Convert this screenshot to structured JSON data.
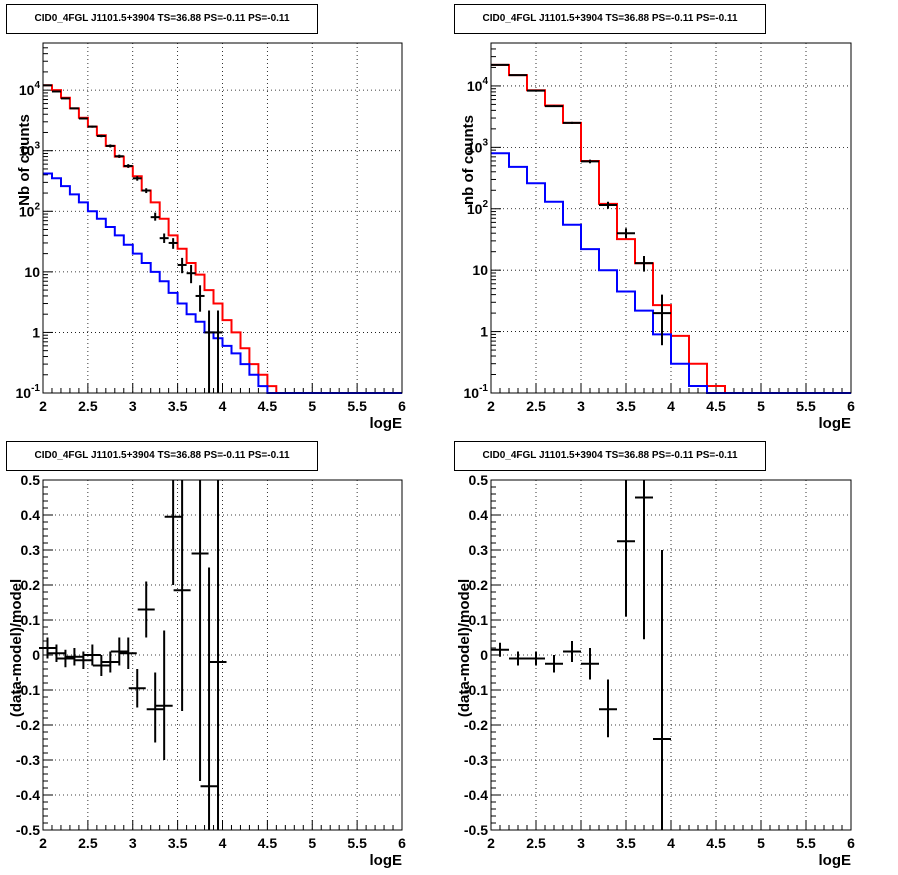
{
  "colors": {
    "data": "#000000",
    "total_model": "#ff0000",
    "source_model": "#0000ff",
    "grid": "#000000"
  },
  "chart_data": [
    {
      "type": "line",
      "title": "CID0_4FGL J1101.5+3904 TS=36.88 PS=-0.11 PS=-0.11",
      "xlabel": "logE",
      "ylabel": "Nb of counts",
      "yscale": "log",
      "xlim": [
        2,
        6
      ],
      "ylim": [
        0.1,
        60000
      ],
      "grid": true,
      "x_ticks": [
        "2",
        "2.5",
        "3",
        "3.5",
        "4",
        "4.5",
        "5",
        "5.5",
        "6"
      ],
      "y_ticks": [
        {
          "v": 0.1,
          "label": "10^-1"
        },
        {
          "v": 1,
          "label": "1"
        },
        {
          "v": 10,
          "label": "10"
        },
        {
          "v": 100,
          "label": "10^2"
        },
        {
          "v": 1000,
          "label": "10^3"
        },
        {
          "v": 10000,
          "label": "10^4"
        }
      ],
      "bin_edges": [
        2.0,
        2.1,
        2.2,
        2.3,
        2.4,
        2.5,
        2.6,
        2.7,
        2.8,
        2.9,
        3.0,
        3.1,
        3.2,
        3.3,
        3.4,
        3.5,
        3.6,
        3.7,
        3.8,
        3.9,
        4.0,
        4.1,
        4.2,
        4.3,
        4.4,
        4.5,
        4.6,
        4.7,
        4.8,
        4.9,
        5.0,
        5.1,
        5.2,
        5.3,
        5.4,
        5.5,
        5.6,
        5.7,
        5.8,
        5.9,
        6.0
      ],
      "series": [
        {
          "role": "total_model",
          "values": [
            12000,
            10000,
            7500,
            5000,
            3500,
            2500,
            1800,
            1200,
            800,
            550,
            380,
            220,
            140,
            75,
            40,
            24,
            14,
            9,
            5,
            3,
            1.6,
            1.0,
            0.55,
            0.3,
            0.2,
            0.13,
            0.1,
            0.1,
            0.1,
            0.1,
            0.1,
            0.1,
            0.1,
            0.1,
            0.1,
            0.1,
            0.1,
            0.1,
            0.1,
            0.1
          ]
        },
        {
          "role": "source_model",
          "values": [
            420,
            350,
            260,
            190,
            140,
            100,
            75,
            55,
            40,
            28,
            20,
            14,
            10,
            7,
            4.5,
            3,
            2,
            1.5,
            1.0,
            0.8,
            0.6,
            0.45,
            0.3,
            0.2,
            0.13,
            0.1,
            0.1,
            0.1,
            0.1,
            0.1,
            0.1,
            0.1,
            0.1,
            0.1,
            0.1,
            0.1,
            0.1,
            0.1,
            0.1,
            0.1
          ]
        }
      ],
      "points": [
        {
          "x": 2.05,
          "y": 12000,
          "lo": 11800,
          "hi": 12200
        },
        {
          "x": 2.15,
          "y": 9500,
          "lo": 9300,
          "hi": 9700
        },
        {
          "x": 2.25,
          "y": 7300,
          "lo": 7100,
          "hi": 7500
        },
        {
          "x": 2.35,
          "y": 5000,
          "lo": 4850,
          "hi": 5150
        },
        {
          "x": 2.45,
          "y": 3400,
          "lo": 3280,
          "hi": 3520
        },
        {
          "x": 2.55,
          "y": 2500,
          "lo": 2400,
          "hi": 2600
        },
        {
          "x": 2.65,
          "y": 1750,
          "lo": 1670,
          "hi": 1830
        },
        {
          "x": 2.75,
          "y": 1200,
          "lo": 1130,
          "hi": 1270
        },
        {
          "x": 2.85,
          "y": 810,
          "lo": 760,
          "hi": 860
        },
        {
          "x": 2.95,
          "y": 560,
          "lo": 520,
          "hi": 600
        },
        {
          "x": 3.05,
          "y": 350,
          "lo": 320,
          "hi": 380
        },
        {
          "x": 3.15,
          "y": 220,
          "lo": 200,
          "hi": 240
        },
        {
          "x": 3.25,
          "y": 80,
          "lo": 70,
          "hi": 95
        },
        {
          "x": 3.35,
          "y": 36,
          "lo": 30,
          "hi": 43
        },
        {
          "x": 3.45,
          "y": 30,
          "lo": 24,
          "hi": 36
        },
        {
          "x": 3.55,
          "y": 13,
          "lo": 9.5,
          "hi": 17
        },
        {
          "x": 3.65,
          "y": 9.5,
          "lo": 6.5,
          "hi": 13
        },
        {
          "x": 3.75,
          "y": 4,
          "lo": 2.2,
          "hi": 6
        },
        {
          "x": 3.85,
          "y": 1.0,
          "lo": 0.1,
          "hi": 2.3
        },
        {
          "x": 3.95,
          "y": 1.0,
          "lo": 0.1,
          "hi": 2.3
        }
      ]
    },
    {
      "type": "line",
      "title": "CID0_4FGL J1101.5+3904 TS=36.88 PS=-0.11 PS=-0.11",
      "xlabel": "logE",
      "ylabel": "nb of counts",
      "yscale": "log",
      "xlim": [
        2,
        6
      ],
      "ylim": [
        0.1,
        50000
      ],
      "grid": true,
      "x_ticks": [
        "2",
        "2.5",
        "3",
        "3.5",
        "4",
        "4.5",
        "5",
        "5.5",
        "6"
      ],
      "y_ticks": [
        {
          "v": 0.1,
          "label": "10^-1"
        },
        {
          "v": 1,
          "label": "1"
        },
        {
          "v": 10,
          "label": "10"
        },
        {
          "v": 100,
          "label": "10^2"
        },
        {
          "v": 1000,
          "label": "10^3"
        },
        {
          "v": 10000,
          "label": "10^4"
        }
      ],
      "bin_edges": [
        2.0,
        2.2,
        2.4,
        2.6,
        2.8,
        3.0,
        3.2,
        3.4,
        3.6,
        3.8,
        4.0,
        4.2,
        4.4,
        4.6,
        4.8,
        5.0,
        5.2,
        5.4,
        5.6,
        5.8,
        6.0
      ],
      "series": [
        {
          "role": "total_model",
          "values": [
            22000,
            15000,
            8500,
            4800,
            2500,
            600,
            120,
            32,
            13,
            2.7,
            0.85,
            0.3,
            0.13,
            0.1,
            0.1,
            0.1,
            0.1,
            0.1,
            0.1,
            0.1
          ]
        },
        {
          "role": "source_model",
          "values": [
            800,
            480,
            260,
            130,
            55,
            22,
            10,
            4.5,
            2.2,
            0.9,
            0.3,
            0.13,
            0.1,
            0.1,
            0.1,
            0.1,
            0.1,
            0.1,
            0.1,
            0.1
          ]
        }
      ],
      "points": [
        {
          "x": 2.1,
          "y": 22000,
          "lo": 21700,
          "hi": 22300
        },
        {
          "x": 2.3,
          "y": 15000,
          "lo": 14750,
          "hi": 15250
        },
        {
          "x": 2.5,
          "y": 8400,
          "lo": 8200,
          "hi": 8600
        },
        {
          "x": 2.7,
          "y": 4700,
          "lo": 4550,
          "hi": 4850
        },
        {
          "x": 2.9,
          "y": 2500,
          "lo": 2400,
          "hi": 2600
        },
        {
          "x": 3.1,
          "y": 590,
          "lo": 550,
          "hi": 630
        },
        {
          "x": 3.3,
          "y": 115,
          "lo": 100,
          "hi": 130
        },
        {
          "x": 3.5,
          "y": 40,
          "lo": 33,
          "hi": 48
        },
        {
          "x": 3.7,
          "y": 13,
          "lo": 9.5,
          "hi": 17
        },
        {
          "x": 3.9,
          "y": 2.0,
          "lo": 0.6,
          "hi": 4
        }
      ]
    },
    {
      "type": "scatter",
      "title": "CID0_4FGL J1101.5+3904 TS=36.88 PS=-0.11 PS=-0.11",
      "xlabel": "logE",
      "ylabel": "(data-model)/model",
      "xlim": [
        2,
        6
      ],
      "ylim": [
        -0.5,
        0.5
      ],
      "grid": true,
      "x_ticks": [
        "2",
        "2.5",
        "3",
        "3.5",
        "4",
        "4.5",
        "5",
        "5.5",
        "6"
      ],
      "y_ticks": [
        {
          "v": -0.5,
          "label": "-0.5"
        },
        {
          "v": -0.4,
          "label": "-0.4"
        },
        {
          "v": -0.3,
          "label": "-0.3"
        },
        {
          "v": -0.2,
          "label": "-0.2"
        },
        {
          "v": -0.1,
          "label": "-0.1"
        },
        {
          "v": 0,
          "label": "0"
        },
        {
          "v": 0.1,
          "label": "0.1"
        },
        {
          "v": 0.2,
          "label": "0.2"
        },
        {
          "v": 0.3,
          "label": "0.3"
        },
        {
          "v": 0.4,
          "label": "0.4"
        },
        {
          "v": 0.5,
          "label": "0.5"
        }
      ],
      "points": [
        {
          "x": 2.05,
          "y": 0.02,
          "lo": -0.01,
          "hi": 0.05
        },
        {
          "x": 2.15,
          "y": 0.005,
          "lo": -0.02,
          "hi": 0.03
        },
        {
          "x": 2.25,
          "y": -0.01,
          "lo": -0.035,
          "hi": 0.015
        },
        {
          "x": 2.35,
          "y": -0.005,
          "lo": -0.03,
          "hi": 0.02
        },
        {
          "x": 2.45,
          "y": -0.015,
          "lo": -0.04,
          "hi": 0.01
        },
        {
          "x": 2.55,
          "y": 0.0,
          "lo": -0.03,
          "hi": 0.03
        },
        {
          "x": 2.65,
          "y": -0.03,
          "lo": -0.06,
          "hi": 0.0
        },
        {
          "x": 2.75,
          "y": -0.02,
          "lo": -0.05,
          "hi": 0.01
        },
        {
          "x": 2.85,
          "y": 0.01,
          "lo": -0.03,
          "hi": 0.05
        },
        {
          "x": 2.95,
          "y": 0.005,
          "lo": -0.04,
          "hi": 0.05
        },
        {
          "x": 3.05,
          "y": -0.095,
          "lo": -0.15,
          "hi": -0.04
        },
        {
          "x": 3.15,
          "y": 0.13,
          "lo": 0.05,
          "hi": 0.21
        },
        {
          "x": 3.25,
          "y": -0.155,
          "lo": -0.25,
          "hi": -0.05
        },
        {
          "x": 3.35,
          "y": -0.145,
          "lo": -0.3,
          "hi": 0.07
        },
        {
          "x": 3.45,
          "y": 0.395,
          "lo": 0.2,
          "hi": 0.5
        },
        {
          "x": 3.55,
          "y": 0.185,
          "lo": -0.16,
          "hi": 0.5
        },
        {
          "x": 3.75,
          "y": 0.29,
          "lo": -0.36,
          "hi": 0.5
        },
        {
          "x": 3.85,
          "y": -0.375,
          "lo": -0.5,
          "hi": 0.25
        },
        {
          "x": 3.95,
          "y": -0.02,
          "lo": -0.5,
          "hi": 0.5
        }
      ]
    },
    {
      "type": "scatter",
      "title": "CID0_4FGL J1101.5+3904 TS=36.88 PS=-0.11 PS=-0.11",
      "xlabel": "logE",
      "ylabel": "(data-model)/model",
      "xlim": [
        2,
        6
      ],
      "ylim": [
        -0.5,
        0.5
      ],
      "grid": true,
      "x_ticks": [
        "2",
        "2.5",
        "3",
        "3.5",
        "4",
        "4.5",
        "5",
        "5.5",
        "6"
      ],
      "y_ticks": [
        {
          "v": -0.5,
          "label": "-0.5"
        },
        {
          "v": -0.4,
          "label": "-0.4"
        },
        {
          "v": -0.3,
          "label": "-0.3"
        },
        {
          "v": -0.2,
          "label": "-0.2"
        },
        {
          "v": -0.1,
          "label": "-0.1"
        },
        {
          "v": 0,
          "label": "0"
        },
        {
          "v": 0.1,
          "label": "0.1"
        },
        {
          "v": 0.2,
          "label": "0.2"
        },
        {
          "v": 0.3,
          "label": "0.3"
        },
        {
          "v": 0.4,
          "label": "0.4"
        },
        {
          "v": 0.5,
          "label": "0.5"
        }
      ],
      "points": [
        {
          "x": 2.1,
          "y": 0.015,
          "lo": -0.005,
          "hi": 0.035
        },
        {
          "x": 2.3,
          "y": -0.01,
          "lo": -0.03,
          "hi": 0.01
        },
        {
          "x": 2.5,
          "y": -0.01,
          "lo": -0.03,
          "hi": 0.01
        },
        {
          "x": 2.7,
          "y": -0.025,
          "lo": -0.05,
          "hi": 0.0
        },
        {
          "x": 2.9,
          "y": 0.01,
          "lo": -0.02,
          "hi": 0.04
        },
        {
          "x": 3.1,
          "y": -0.025,
          "lo": -0.07,
          "hi": 0.02
        },
        {
          "x": 3.3,
          "y": -0.155,
          "lo": -0.235,
          "hi": -0.07
        },
        {
          "x": 3.5,
          "y": 0.325,
          "lo": 0.11,
          "hi": 0.5
        },
        {
          "x": 3.7,
          "y": 0.45,
          "lo": 0.045,
          "hi": 0.5
        },
        {
          "x": 3.9,
          "y": -0.24,
          "lo": -0.5,
          "hi": 0.3
        }
      ]
    }
  ]
}
